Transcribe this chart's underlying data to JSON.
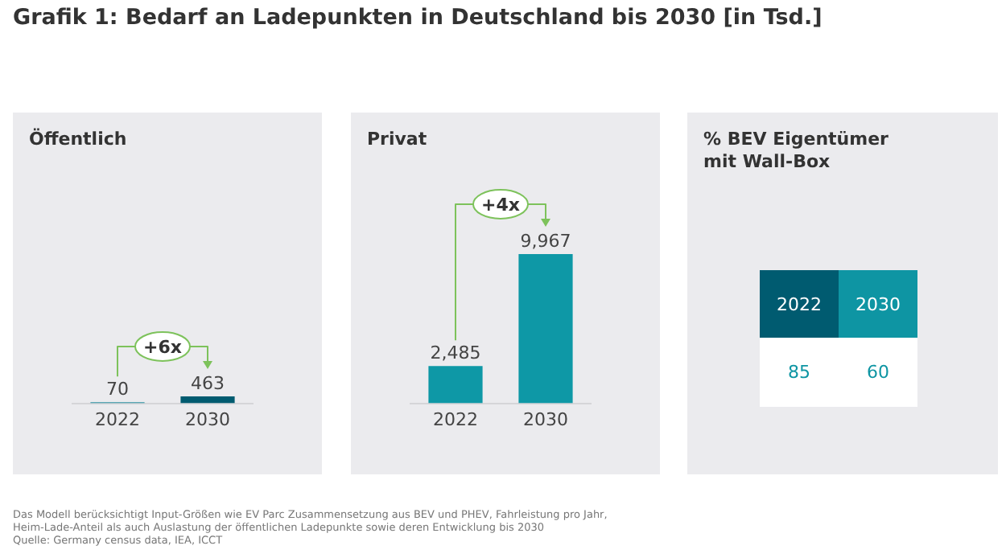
{
  "chart_data": [
    {
      "type": "other",
      "title": "Grafik 1: Bedarf an Ladepunkten in Deutschland bis 2030 [in Tsd.]"
    },
    {
      "type": "bar",
      "title": "Öffentlich",
      "categories": [
        "2022",
        "2030"
      ],
      "values": [
        70,
        463
      ],
      "colors": [
        "#2a8fa0",
        "#005b70"
      ],
      "value_labels": [
        "70",
        "463"
      ],
      "tick_labels": "x",
      "legend": false,
      "annotations": [
        "+6x"
      ]
    },
    {
      "type": "bar",
      "title": "Privat",
      "categories": [
        "2022",
        "2030"
      ],
      "values": [
        2485,
        9967
      ],
      "colors": [
        "#0e98a6",
        "#0e98a6"
      ],
      "value_labels": [
        "2,485",
        "9,967"
      ],
      "tick_labels": "x",
      "legend": false,
      "annotations": [
        "+4x"
      ]
    },
    {
      "type": "other",
      "title": "% BEV Eigentümer mit Wall-Box",
      "annotations": [
        "2022",
        "2030",
        "85",
        "60"
      ],
      "colors": [
        "#005b70",
        "#0e95a3"
      ]
    },
    {
      "type": "other",
      "annotations": [
        "Das Modell berücksichtigt Input-Größen wie EV Parc Zusammensetzung aus BEV und PHEV, Fahrleistung pro Jahr, Heim-Lade-Anteil als auch Auslastung der öffentlichen Ladepunkte sowie deren Entwicklung bis 2030",
        "Quelle: Germany census data, IEA, ICCT"
      ]
    }
  ]
}
